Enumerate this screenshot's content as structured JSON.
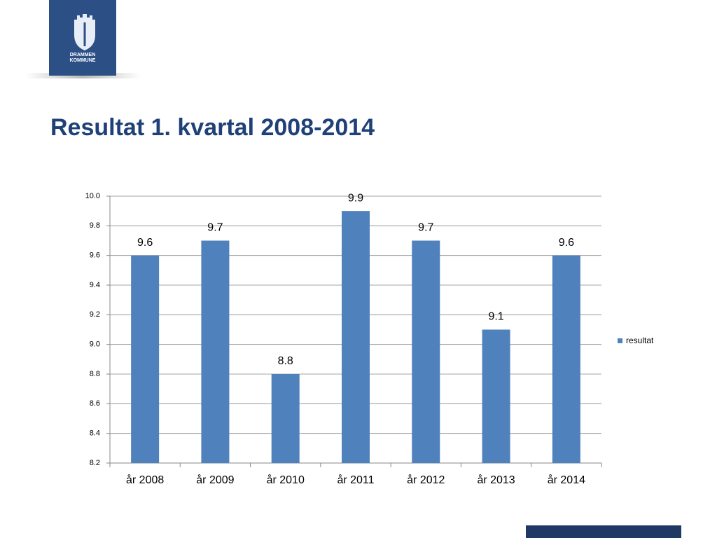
{
  "logo": {
    "lines": [
      "DRAMMEN",
      "KOMMUNE"
    ]
  },
  "chart_data": {
    "type": "bar",
    "title": "Resultat 1. kvartal 2008-2014",
    "categories": [
      "år 2008",
      "år 2009",
      "år 2010",
      "år 2011",
      "år 2012",
      "år 2013",
      "år 2014"
    ],
    "series": [
      {
        "name": "resultat",
        "color": "#4f81bd",
        "values": [
          9.6,
          9.7,
          8.8,
          9.9,
          9.7,
          9.1,
          9.6
        ]
      }
    ],
    "ylim": [
      8.2,
      10.0
    ],
    "yticks": [
      8.2,
      8.4,
      8.6,
      8.8,
      {
        "value": 9.0,
        "label": "9.0"
      },
      9.2,
      9.4,
      9.6,
      9.8,
      {
        "value": 10.0,
        "label": "10.0"
      }
    ],
    "grid": true,
    "legend": "right"
  }
}
